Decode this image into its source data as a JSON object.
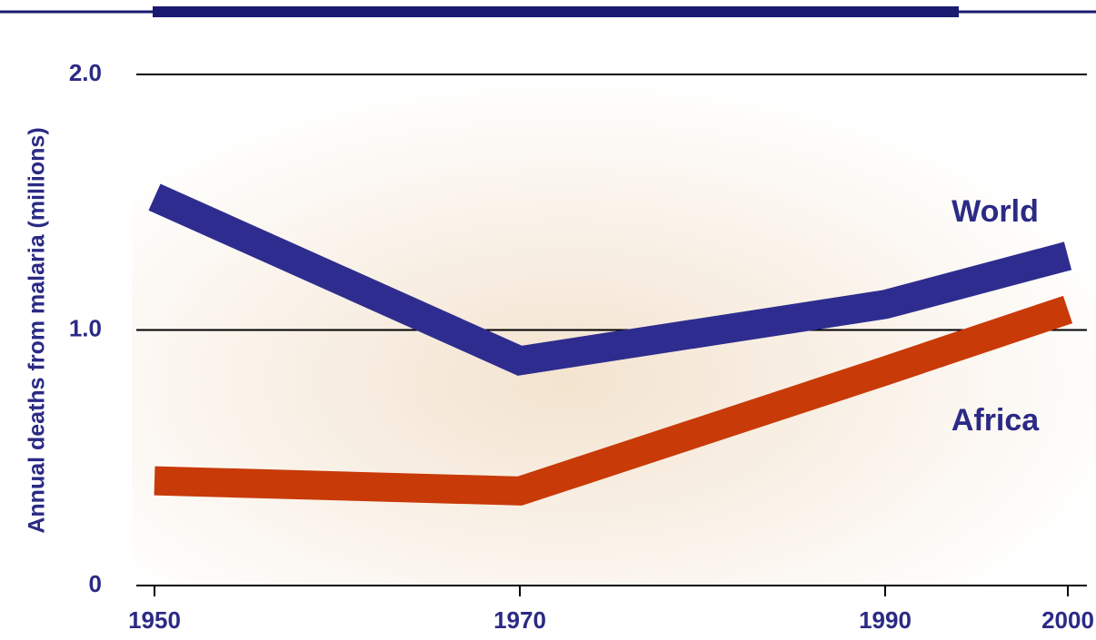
{
  "chart_data": {
    "type": "line",
    "y_label": "Annual deaths from malaria (millions)",
    "x": [
      1950,
      1970,
      1990,
      2000
    ],
    "series": [
      {
        "name": "World",
        "color": "#2e2d8f",
        "values": [
          1.52,
          0.88,
          1.1,
          1.29
        ]
      },
      {
        "name": "Africa",
        "color": "#c83a08",
        "values": [
          0.41,
          0.37,
          0.84,
          1.08
        ]
      }
    ],
    "xlim": [
      1949,
      2001
    ],
    "xticks": [
      1950,
      1970,
      1990,
      2000
    ],
    "ylim": [
      0,
      2
    ],
    "yticks": [
      0,
      {
        "value": 1,
        "label": "1.0"
      },
      {
        "value": 2,
        "label": "2.0"
      }
    ],
    "grid": true
  }
}
